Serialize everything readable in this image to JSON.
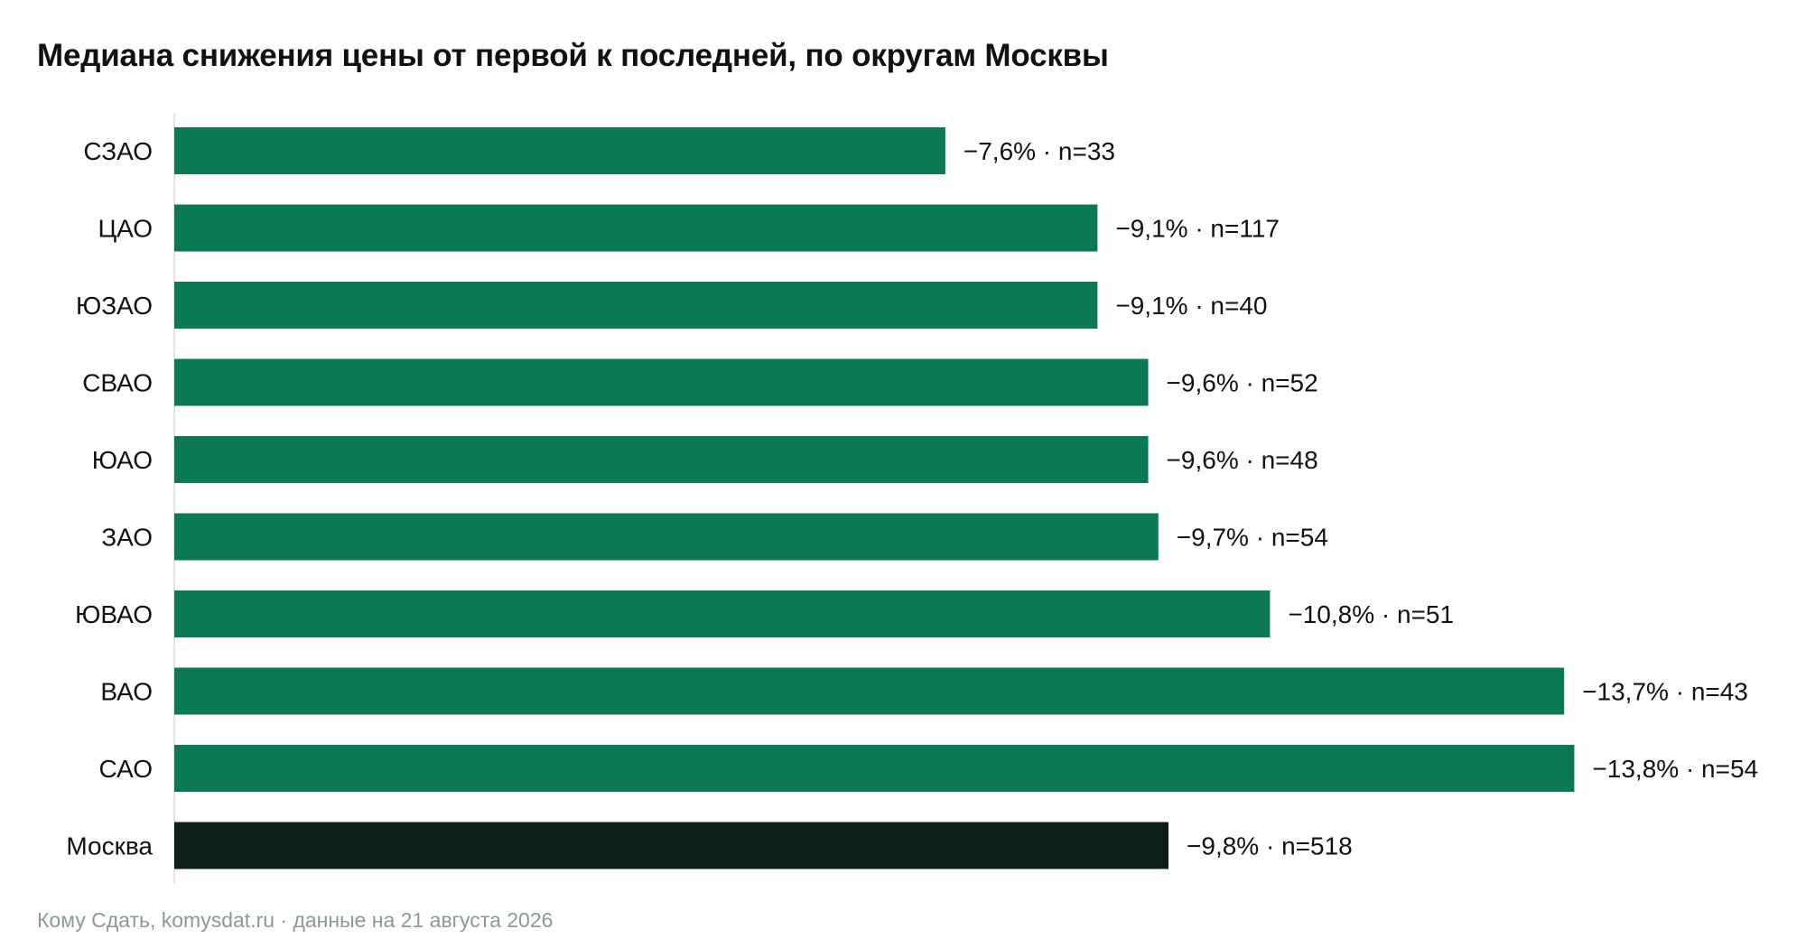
{
  "title": "Медиана снижения цены от первой к последней, по округам Москвы",
  "source": "Кому Сдать, komysdat.ru · данные на 21 августа 2026",
  "colors": {
    "district_bar": "#0b7a52",
    "total_bar": "#0c1f18",
    "axis_line": "#e3e3e3",
    "text": "#111111",
    "source_text": "#8a9a94"
  },
  "chart_data": {
    "type": "bar",
    "orientation": "horizontal",
    "title": "Медиана снижения цены от первой к последней, по округам Москвы",
    "xlabel": "",
    "ylabel": "",
    "xlim": [
      0,
      14.5
    ],
    "grid": false,
    "categories": [
      "СЗАО",
      "ЦАО",
      "ЮЗАО",
      "СВАО",
      "ЮАО",
      "ЗАО",
      "ЮВАО",
      "ВАО",
      "САО",
      "Москва"
    ],
    "values": [
      -7.6,
      -9.1,
      -9.1,
      -9.6,
      -9.6,
      -9.7,
      -10.8,
      -13.7,
      -13.8,
      -9.8
    ],
    "n": [
      33,
      117,
      40,
      52,
      48,
      54,
      51,
      43,
      54,
      518
    ],
    "data_labels": [
      "−7,6% · n=33",
      "−9,1% · n=117",
      "−9,1% · n=40",
      "−9,6% · n=52",
      "−9,6% · n=48",
      "−9,7% · n=54",
      "−10,8% · n=51",
      "−13,7% · n=43",
      "−13,8% · n=54",
      "−9,8% · n=518"
    ],
    "highlight_category": "Москва"
  }
}
